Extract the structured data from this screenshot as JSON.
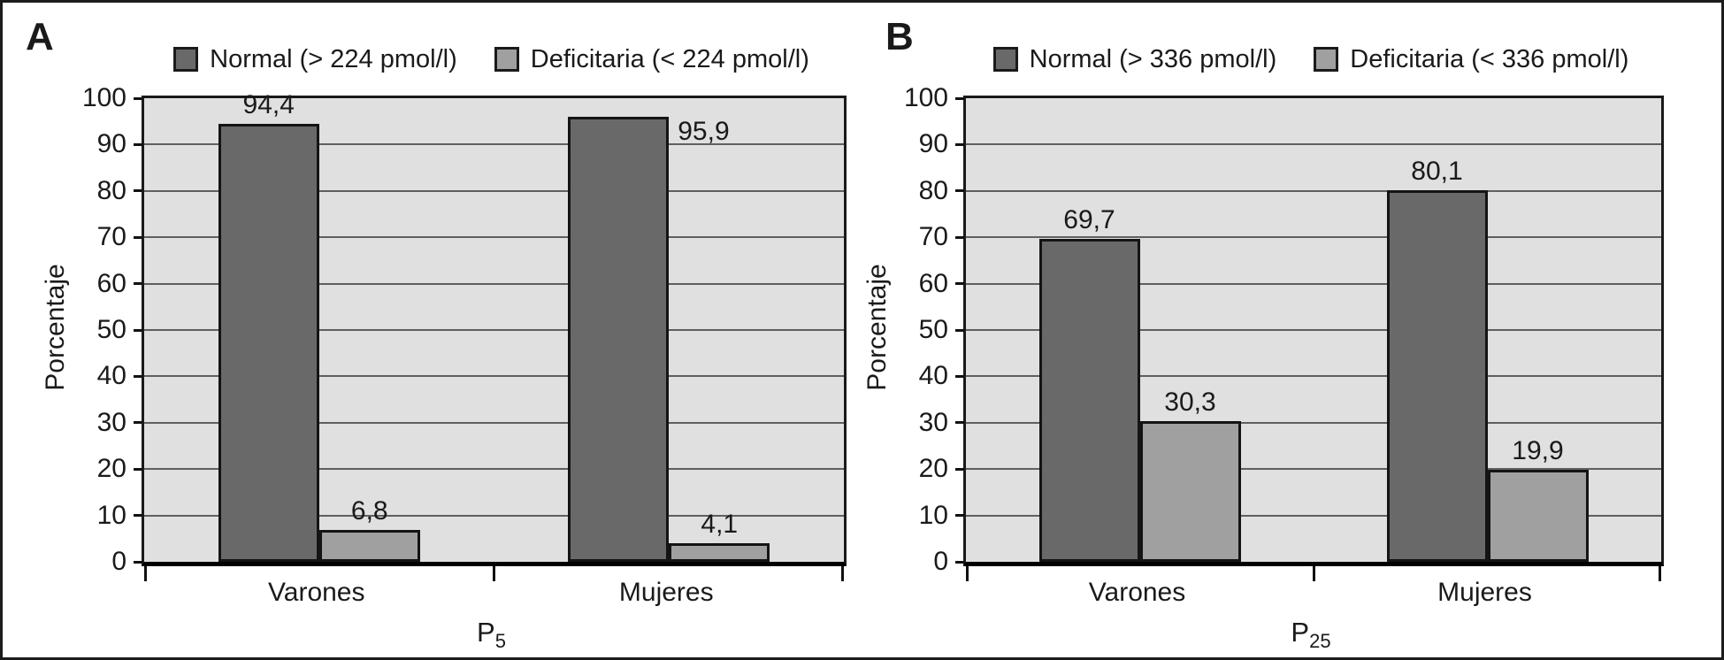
{
  "figure": {
    "background": "#ffffff",
    "frame_color": "#1c1c1c",
    "plot_background": "#e0e0e0",
    "gridline_color": "#5f5f5f",
    "axis_color": "#111111",
    "text_color": "#1a1a1a"
  },
  "chart_data": [
    {
      "type": "bar",
      "panel_label": "A",
      "ylabel": "Porcentaje",
      "ylim": [
        0,
        100
      ],
      "yticks": [
        0,
        10,
        20,
        30,
        40,
        50,
        60,
        70,
        80,
        90,
        100
      ],
      "grid": "horizontal",
      "legend_position": "top",
      "categories": [
        "Varones",
        "Mujeres"
      ],
      "xlabel_base": "P",
      "xlabel_sub": "5",
      "series": [
        {
          "name": "Normal (> 224 pmol/l)",
          "color": "#696969",
          "values": [
            94.4,
            95.9
          ],
          "value_labels": [
            "94,4",
            "95,9"
          ]
        },
        {
          "name": "Deficitaria (< 224 pmol/l)",
          "color": "#a0a0a0",
          "values": [
            6.8,
            4.1
          ],
          "value_labels": [
            "6,8",
            "4,1"
          ]
        }
      ],
      "value_label_placement": [
        [
          "above",
          "above"
        ],
        [
          "right",
          "above"
        ]
      ]
    },
    {
      "type": "bar",
      "panel_label": "B",
      "ylabel": "Porcentaje",
      "ylim": [
        0,
        100
      ],
      "yticks": [
        0,
        10,
        20,
        30,
        40,
        50,
        60,
        70,
        80,
        90,
        100
      ],
      "grid": "horizontal",
      "legend_position": "top",
      "categories": [
        "Varones",
        "Mujeres"
      ],
      "xlabel_base": "P",
      "xlabel_sub": "25",
      "series": [
        {
          "name": "Normal (> 336 pmol/l)",
          "color": "#696969",
          "values": [
            69.7,
            80.1
          ],
          "value_labels": [
            "69,7",
            "80,1"
          ]
        },
        {
          "name": "Deficitaria (< 336 pmol/l)",
          "color": "#a0a0a0",
          "values": [
            30.3,
            19.9
          ],
          "value_labels": [
            "30,3",
            "19,9"
          ]
        }
      ],
      "value_label_placement": [
        [
          "above",
          "above"
        ],
        [
          "above",
          "above"
        ]
      ]
    }
  ]
}
